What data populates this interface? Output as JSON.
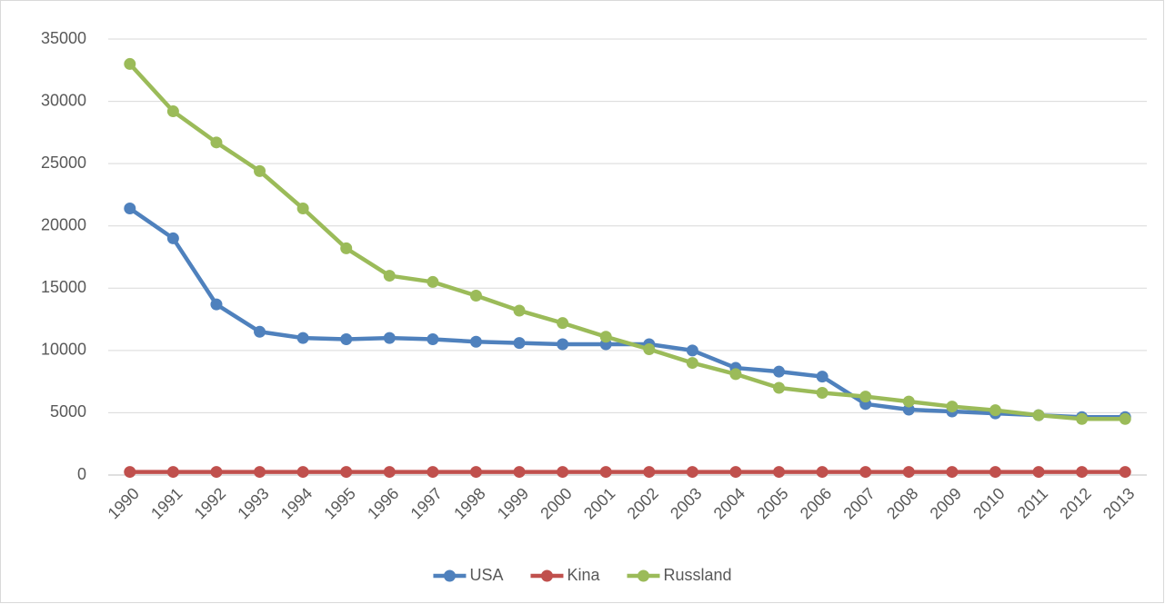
{
  "chart_data": {
    "type": "line",
    "categories": [
      "1990",
      "1991",
      "1992",
      "1993",
      "1994",
      "1995",
      "1996",
      "1997",
      "1998",
      "1999",
      "2000",
      "2001",
      "2002",
      "2003",
      "2004",
      "2005",
      "2006",
      "2007",
      "2008",
      "2009",
      "2010",
      "2011",
      "2012",
      "2013"
    ],
    "series": [
      {
        "name": "USA",
        "color": "#4f81bd",
        "values": [
          21400,
          19000,
          13700,
          11500,
          11000,
          10900,
          11000,
          10900,
          10700,
          10600,
          10500,
          10500,
          10500,
          10000,
          8600,
          8300,
          7900,
          5700,
          5250,
          5100,
          4950,
          4800,
          4650,
          4650
        ]
      },
      {
        "name": "Kina",
        "color": "#c0504d",
        "values": [
          250,
          250,
          250,
          250,
          250,
          250,
          250,
          250,
          250,
          250,
          250,
          250,
          250,
          250,
          250,
          250,
          250,
          250,
          250,
          250,
          250,
          250,
          250,
          250
        ]
      },
      {
        "name": "Russland",
        "color": "#9bbb59",
        "values": [
          33000,
          29200,
          26700,
          24400,
          21400,
          18200,
          16000,
          15500,
          14400,
          13200,
          12200,
          11100,
          10100,
          9000,
          8100,
          7000,
          6600,
          6300,
          5900,
          5500,
          5200,
          4800,
          4500,
          4500
        ]
      }
    ],
    "ylim": [
      0,
      35000
    ],
    "yticks": [
      0,
      5000,
      10000,
      15000,
      20000,
      25000,
      30000,
      35000
    ],
    "grid": true,
    "legend": "bottom"
  }
}
